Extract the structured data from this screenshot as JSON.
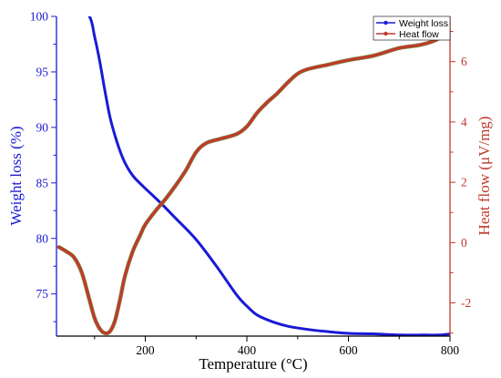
{
  "chart_data": {
    "type": "line",
    "xlabel": "Temperature (°C)",
    "xlim": [
      25,
      800
    ],
    "x_ticks": [
      200,
      400,
      600,
      800
    ],
    "y_left": {
      "label": "Weight loss (%)",
      "lim": [
        71.2,
        100
      ],
      "ticks": [
        75,
        80,
        85,
        90,
        95,
        100
      ],
      "color": "#1a1ad6"
    },
    "y_right": {
      "label": "Heat flow (μV/mg)",
      "lim": [
        -3.1,
        7.5
      ],
      "ticks": [
        -2,
        0,
        2,
        4,
        6
      ],
      "color": "#c0392b"
    },
    "legend_position": "top-right",
    "series": [
      {
        "name": "Weight loss",
        "axis": "left",
        "color": "#1a1ad6",
        "x": [
          60,
          90,
          100,
          110,
          120,
          130,
          140,
          150,
          160,
          170,
          180,
          200,
          230,
          260,
          300,
          340,
          380,
          400,
          420,
          450,
          480,
          520,
          560,
          600,
          650,
          700,
          750,
          780,
          800
        ],
        "y": [
          101.5,
          100.0,
          98.2,
          96.0,
          93.4,
          91.0,
          89.3,
          87.9,
          86.8,
          86.0,
          85.4,
          84.5,
          83.2,
          81.8,
          79.9,
          77.5,
          74.9,
          73.9,
          73.1,
          72.5,
          72.1,
          71.8,
          71.6,
          71.45,
          71.4,
          71.3,
          71.3,
          71.3,
          71.4
        ]
      },
      {
        "name": "Heat flow",
        "axis": "right",
        "color": "#c0392b",
        "x": [
          30,
          45,
          60,
          75,
          90,
          100,
          110,
          120,
          130,
          140,
          150,
          160,
          175,
          190,
          200,
          220,
          240,
          260,
          280,
          300,
          320,
          350,
          380,
          400,
          420,
          440,
          460,
          480,
          500,
          520,
          560,
          600,
          650,
          700,
          740,
          770,
          790,
          800
        ],
        "y": [
          -0.15,
          -0.3,
          -0.5,
          -1.0,
          -1.9,
          -2.5,
          -2.85,
          -3.0,
          -2.95,
          -2.6,
          -1.9,
          -1.1,
          -0.3,
          0.25,
          0.6,
          1.05,
          1.45,
          1.9,
          2.4,
          3.0,
          3.3,
          3.45,
          3.6,
          3.85,
          4.3,
          4.65,
          4.95,
          5.3,
          5.6,
          5.75,
          5.9,
          6.05,
          6.2,
          6.45,
          6.55,
          6.7,
          6.9,
          7.0
        ]
      }
    ]
  }
}
